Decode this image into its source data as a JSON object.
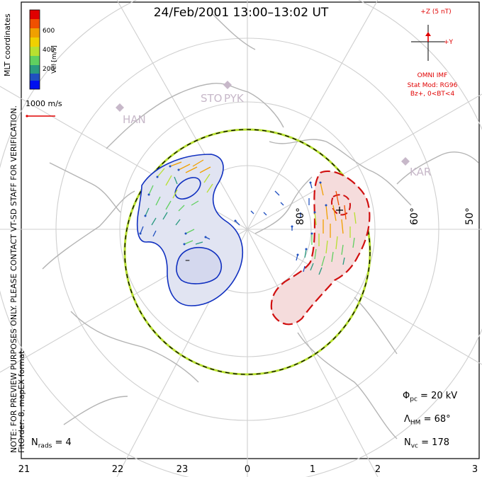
{
  "title": "24/Feb/2001 13:00–13:02 UT",
  "coords_note": "MLT coordinates",
  "preview_note": "NOTE: FOR PREVIEW PURPOSES ONLY. PLEASE CONTACT VT-SD STAFF FOR VERIFICATION.",
  "fit_note": "FitOrder: 8, mapEX format",
  "colorbar": {
    "label": "Vel [m/s]",
    "ticks": [
      "600",
      "400",
      "200"
    ],
    "colors": [
      "#e00000",
      "#f05000",
      "#f0a000",
      "#f0d000",
      "#b8e030",
      "#60d060",
      "#2a9a80",
      "#2050c0",
      "#0010f0"
    ]
  },
  "scale_vector_label": "1000 m/s",
  "imf": {
    "scale_label": "+Z (5 nT)",
    "y_label": "+Y",
    "source": "OMNI IMF",
    "model": "Stat Mod: RG96",
    "condition": "Bz+, 0<BT<4"
  },
  "stations": [
    "HAN",
    "STO",
    "PYK",
    "KAR"
  ],
  "lat_labels": [
    "80°",
    "60°",
    "50°"
  ],
  "stats": {
    "phi_sym": "Φ",
    "phi_sub": "pc",
    "phi_val": " = 20 kV",
    "lam_sym": "Λ",
    "lam_sub": "HM",
    "lam_val": " = 68°",
    "nvc_sym": "N",
    "nvc_sub": "vc",
    "nvc_val": " = 178",
    "nrads_sym": "N",
    "nrads_sub": "rads",
    "nrads_val": " = 4"
  },
  "mlt_ticks": [
    "21",
    "22",
    "23",
    "0",
    "1",
    "2",
    "3"
  ],
  "potential_markers": {
    "neg": "–",
    "pos": "+"
  },
  "accent_colors": {
    "negative_cell": "#1030c0",
    "positive_cell": "#d01010",
    "station": "#c7b8c9",
    "imf": "#e00000"
  }
}
